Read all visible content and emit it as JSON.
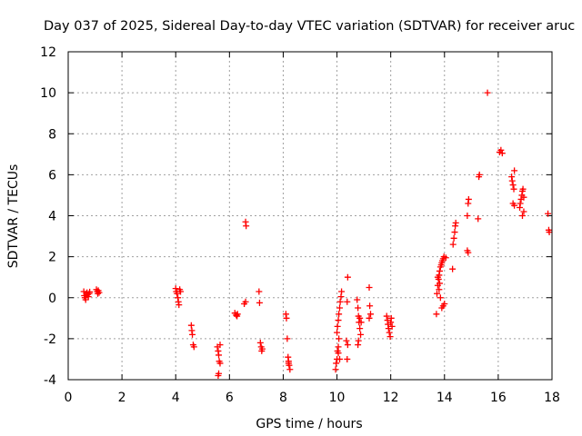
{
  "chart_data": {
    "type": "scatter",
    "title": "Day 037 of 2025, Sidereal Day-to-day VTEC variation (SDTVAR) for receiver aruc",
    "xlabel": "GPS time / hours",
    "ylabel": "SDTVAR / TECUs",
    "xlim": [
      0,
      18
    ],
    "ylim": [
      -4,
      12
    ],
    "grid": true,
    "xticks": [
      {
        "label": "0"
      },
      {
        "label": "2"
      },
      {
        "label": "4"
      },
      {
        "label": "6"
      },
      {
        "label": "8"
      },
      {
        "label": "10"
      },
      {
        "label": "12"
      },
      {
        "label": "14"
      },
      {
        "label": "16"
      },
      {
        "label": "18"
      }
    ],
    "yticks": [
      {
        "label": "-4"
      },
      {
        "label": "-2"
      },
      {
        "label": "0"
      },
      {
        "label": "2"
      },
      {
        "label": "4"
      },
      {
        "label": "6"
      },
      {
        "label": "8"
      },
      {
        "label": "10"
      },
      {
        "label": "12"
      }
    ],
    "marker_color": "#ff0000",
    "series": [
      {
        "name": "SDTVAR",
        "points": [
          [
            0.58,
            0.3
          ],
          [
            0.6,
            0.1
          ],
          [
            0.62,
            0.0
          ],
          [
            0.65,
            -0.1
          ],
          [
            0.68,
            0.2
          ],
          [
            0.7,
            0.25
          ],
          [
            0.72,
            0.15
          ],
          [
            0.75,
            0.05
          ],
          [
            0.78,
            0.2
          ],
          [
            0.8,
            0.28
          ],
          [
            1.05,
            0.4
          ],
          [
            1.08,
            0.3
          ],
          [
            1.1,
            0.2
          ],
          [
            1.12,
            0.35
          ],
          [
            1.15,
            0.25
          ],
          [
            4.0,
            0.45
          ],
          [
            4.02,
            0.3
          ],
          [
            4.05,
            0.2
          ],
          [
            4.08,
            0.0
          ],
          [
            4.1,
            -0.2
          ],
          [
            4.12,
            -0.35
          ],
          [
            4.15,
            0.4
          ],
          [
            4.18,
            0.3
          ],
          [
            4.58,
            -1.35
          ],
          [
            4.6,
            -1.6
          ],
          [
            4.62,
            -1.8
          ],
          [
            4.65,
            -2.3
          ],
          [
            4.68,
            -2.4
          ],
          [
            5.55,
            -2.4
          ],
          [
            5.58,
            -2.6
          ],
          [
            5.6,
            -2.8
          ],
          [
            5.62,
            -3.1
          ],
          [
            5.65,
            -3.2
          ],
          [
            5.6,
            -3.7
          ],
          [
            5.58,
            -3.8
          ],
          [
            5.65,
            -2.3
          ],
          [
            6.2,
            -0.75
          ],
          [
            6.25,
            -0.85
          ],
          [
            6.3,
            -0.8
          ],
          [
            6.28,
            -0.9
          ],
          [
            6.55,
            -0.3
          ],
          [
            6.6,
            -0.2
          ],
          [
            6.62,
            3.5
          ],
          [
            6.6,
            3.7
          ],
          [
            7.1,
            0.3
          ],
          [
            7.12,
            -0.25
          ],
          [
            7.15,
            -2.2
          ],
          [
            7.18,
            -2.4
          ],
          [
            7.2,
            -2.6
          ],
          [
            7.22,
            -2.5
          ],
          [
            8.1,
            -0.8
          ],
          [
            8.12,
            -1.0
          ],
          [
            8.15,
            -2.0
          ],
          [
            8.18,
            -2.9
          ],
          [
            8.2,
            -3.1
          ],
          [
            8.22,
            -3.3
          ],
          [
            8.25,
            -3.5
          ],
          [
            8.2,
            -3.2
          ],
          [
            9.95,
            -3.5
          ],
          [
            9.97,
            -3.2
          ],
          [
            10.0,
            -3.0
          ],
          [
            10.02,
            -2.6
          ],
          [
            10.05,
            -2.4
          ],
          [
            10.07,
            -2.0
          ],
          [
            10.0,
            -1.7
          ],
          [
            10.02,
            -1.4
          ],
          [
            10.05,
            -1.1
          ],
          [
            10.07,
            -0.8
          ],
          [
            10.1,
            -0.5
          ],
          [
            10.12,
            -0.2
          ],
          [
            10.15,
            0.05
          ],
          [
            10.17,
            0.3
          ],
          [
            10.05,
            -2.7
          ],
          [
            10.1,
            -3.0
          ],
          [
            10.4,
            1.0
          ],
          [
            10.38,
            -0.2
          ],
          [
            10.35,
            -2.1
          ],
          [
            10.4,
            -2.3
          ],
          [
            10.38,
            -3.0
          ],
          [
            10.75,
            -0.1
          ],
          [
            10.78,
            -0.5
          ],
          [
            10.8,
            -0.9
          ],
          [
            10.82,
            -1.2
          ],
          [
            10.85,
            -1.5
          ],
          [
            10.88,
            -1.8
          ],
          [
            10.8,
            -2.1
          ],
          [
            10.78,
            -2.3
          ],
          [
            10.85,
            -1.0
          ],
          [
            10.9,
            -1.2
          ],
          [
            11.2,
            0.5
          ],
          [
            11.22,
            -0.4
          ],
          [
            11.25,
            -0.8
          ],
          [
            11.2,
            -1.0
          ],
          [
            11.85,
            -0.9
          ],
          [
            11.88,
            -1.1
          ],
          [
            11.9,
            -1.3
          ],
          [
            11.92,
            -1.5
          ],
          [
            11.95,
            -1.7
          ],
          [
            11.98,
            -1.9
          ],
          [
            12.0,
            -1.2
          ],
          [
            12.02,
            -1.0
          ],
          [
            12.05,
            -1.4
          ],
          [
            13.7,
            -0.8
          ],
          [
            13.72,
            0.2
          ],
          [
            13.75,
            0.6
          ],
          [
            13.78,
            0.9
          ],
          [
            13.8,
            1.1
          ],
          [
            13.82,
            1.3
          ],
          [
            13.85,
            1.5
          ],
          [
            13.88,
            1.6
          ],
          [
            13.9,
            1.7
          ],
          [
            13.92,
            1.8
          ],
          [
            13.95,
            1.9
          ],
          [
            13.98,
            2.0
          ],
          [
            13.8,
            0.4
          ],
          [
            13.85,
            0.0
          ],
          [
            13.9,
            -0.5
          ],
          [
            13.95,
            -0.4
          ],
          [
            14.0,
            -0.3
          ],
          [
            14.05,
            1.95
          ],
          [
            13.75,
            1.0
          ],
          [
            13.82,
            0.7
          ],
          [
            14.3,
            1.4
          ],
          [
            14.32,
            2.6
          ],
          [
            14.35,
            2.9
          ],
          [
            14.38,
            3.2
          ],
          [
            14.4,
            3.5
          ],
          [
            14.42,
            3.65
          ],
          [
            14.85,
            2.3
          ],
          [
            14.88,
            2.2
          ],
          [
            14.85,
            4.0
          ],
          [
            14.88,
            4.6
          ],
          [
            14.9,
            4.8
          ],
          [
            15.25,
            3.85
          ],
          [
            15.28,
            5.9
          ],
          [
            15.3,
            6.0
          ],
          [
            15.6,
            10.0
          ],
          [
            16.05,
            7.1
          ],
          [
            16.1,
            7.2
          ],
          [
            16.15,
            7.05
          ],
          [
            16.5,
            5.9
          ],
          [
            16.52,
            5.7
          ],
          [
            16.55,
            5.5
          ],
          [
            16.58,
            5.3
          ],
          [
            16.6,
            6.2
          ],
          [
            16.55,
            4.6
          ],
          [
            16.6,
            4.5
          ],
          [
            16.8,
            4.4
          ],
          [
            16.82,
            4.6
          ],
          [
            16.85,
            4.8
          ],
          [
            16.88,
            5.0
          ],
          [
            16.9,
            5.2
          ],
          [
            16.92,
            5.3
          ],
          [
            16.95,
            4.2
          ],
          [
            16.9,
            4.0
          ],
          [
            16.95,
            4.9
          ],
          [
            17.85,
            4.1
          ],
          [
            17.88,
            3.3
          ],
          [
            17.9,
            3.2
          ]
        ]
      }
    ]
  }
}
